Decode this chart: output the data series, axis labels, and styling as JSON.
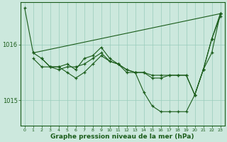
{
  "background_color": "#cce8dd",
  "plot_bg_color": "#cce8dd",
  "line_color": "#1a5c1a",
  "grid_color": "#99ccbb",
  "xlabel": "Graphe pression niveau de la mer (hPa)",
  "xlim": [
    -0.5,
    23.5
  ],
  "ylim": [
    1014.55,
    1016.75
  ],
  "yticks": [
    1015,
    1016
  ],
  "xticks": [
    0,
    1,
    2,
    3,
    4,
    5,
    6,
    7,
    8,
    9,
    10,
    11,
    12,
    13,
    14,
    15,
    16,
    17,
    18,
    19,
    20,
    21,
    22,
    23
  ],
  "series1": [
    [
      0,
      1016.65
    ],
    [
      1,
      1015.85
    ],
    [
      2,
      1015.75
    ],
    [
      3,
      1015.6
    ],
    [
      4,
      1015.6
    ],
    [
      5,
      1015.65
    ],
    [
      6,
      1015.55
    ],
    [
      7,
      1015.75
    ],
    [
      8,
      1015.8
    ],
    [
      9,
      1015.95
    ],
    [
      10,
      1015.75
    ],
    [
      11,
      1015.65
    ],
    [
      12,
      1015.5
    ],
    [
      13,
      1015.5
    ],
    [
      14,
      1015.15
    ],
    [
      15,
      1014.9
    ],
    [
      16,
      1014.8
    ],
    [
      17,
      1014.8
    ],
    [
      18,
      1014.8
    ],
    [
      19,
      1014.8
    ],
    [
      20,
      1015.1
    ],
    [
      21,
      1015.55
    ],
    [
      22,
      1015.85
    ],
    [
      23,
      1016.55
    ]
  ],
  "series2": [
    [
      1,
      1015.85
    ],
    [
      23,
      1016.55
    ]
  ],
  "series3": [
    [
      1,
      1015.75
    ],
    [
      2,
      1015.6
    ],
    [
      3,
      1015.6
    ],
    [
      4,
      1015.55
    ],
    [
      5,
      1015.6
    ],
    [
      6,
      1015.6
    ],
    [
      7,
      1015.65
    ],
    [
      8,
      1015.75
    ],
    [
      9,
      1015.85
    ],
    [
      10,
      1015.7
    ],
    [
      11,
      1015.65
    ],
    [
      12,
      1015.55
    ],
    [
      13,
      1015.5
    ],
    [
      14,
      1015.5
    ],
    [
      15,
      1015.45
    ],
    [
      16,
      1015.45
    ],
    [
      17,
      1015.45
    ],
    [
      18,
      1015.45
    ],
    [
      19,
      1015.45
    ],
    [
      20,
      1015.1
    ],
    [
      21,
      1015.55
    ],
    [
      22,
      1016.1
    ],
    [
      23,
      1016.55
    ]
  ],
  "series4": [
    [
      2,
      1015.75
    ],
    [
      3,
      1015.6
    ],
    [
      4,
      1015.6
    ],
    [
      5,
      1015.5
    ],
    [
      6,
      1015.4
    ],
    [
      7,
      1015.5
    ],
    [
      8,
      1015.65
    ],
    [
      9,
      1015.8
    ],
    [
      10,
      1015.7
    ],
    [
      11,
      1015.65
    ],
    [
      12,
      1015.55
    ],
    [
      13,
      1015.5
    ],
    [
      14,
      1015.5
    ],
    [
      15,
      1015.4
    ],
    [
      16,
      1015.4
    ],
    [
      17,
      1015.45
    ],
    [
      18,
      1015.45
    ],
    [
      19,
      1015.45
    ],
    [
      20,
      1015.1
    ],
    [
      21,
      1015.55
    ],
    [
      22,
      1016.1
    ],
    [
      23,
      1016.5
    ]
  ]
}
